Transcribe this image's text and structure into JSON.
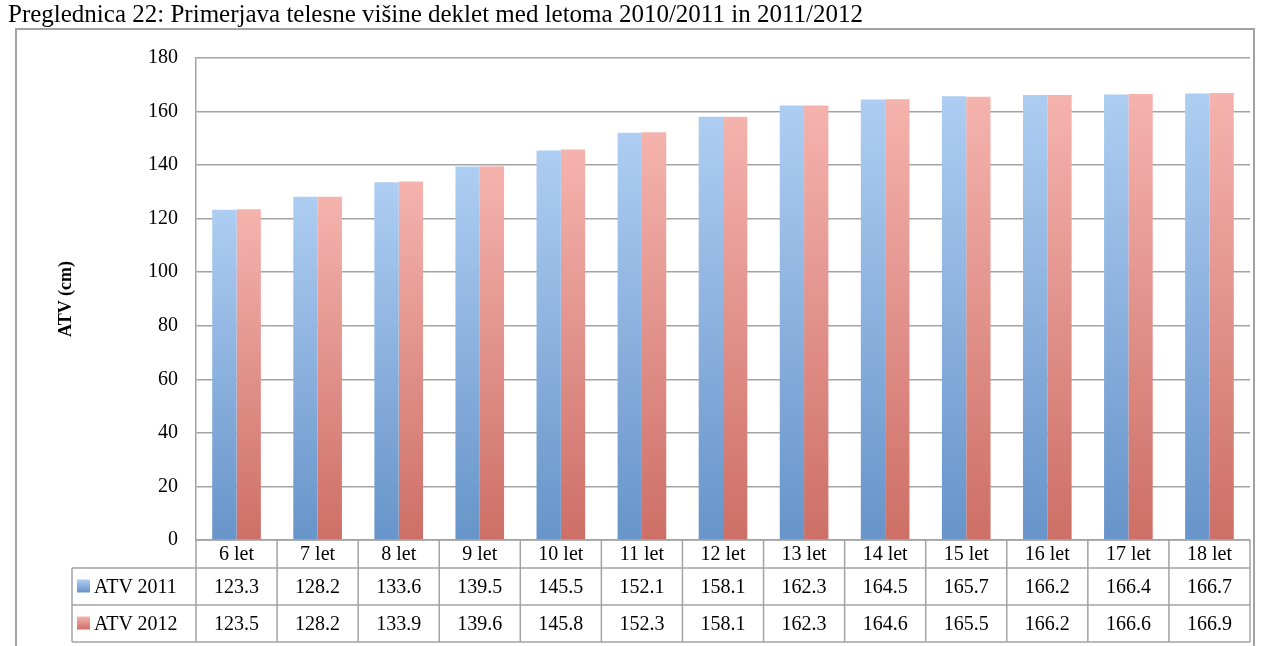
{
  "chart_data": {
    "type": "bar",
    "title": "Preglednica 22: Primerjava telesne višine deklet med letoma 2010/2011 in 2011/2012",
    "ylabel": "ATV (cm)",
    "categories": [
      "6 let",
      "7 let",
      "8 let",
      "9 let",
      "10 let",
      "11 let",
      "12 let",
      "13 let",
      "14 let",
      "15 let",
      "16 let",
      "17 let",
      "18 let"
    ],
    "series": [
      {
        "name": "ATV 2011",
        "color": "#78acea",
        "values": [
          123.3,
          128.2,
          133.6,
          139.5,
          145.5,
          152.1,
          158.1,
          162.3,
          164.5,
          165.7,
          166.2,
          166.4,
          166.7
        ]
      },
      {
        "name": "ATV 2012",
        "color": "#ee8178",
        "values": [
          123.5,
          128.2,
          133.9,
          139.6,
          145.8,
          152.3,
          158.1,
          162.3,
          164.6,
          165.5,
          166.2,
          166.6,
          166.9
        ]
      }
    ],
    "ylim": [
      0,
      180
    ],
    "yticks": [
      0,
      20,
      40,
      60,
      80,
      100,
      120,
      140,
      160,
      180
    ],
    "grid": "y",
    "legend": "bottom left",
    "data_labels": true
  }
}
